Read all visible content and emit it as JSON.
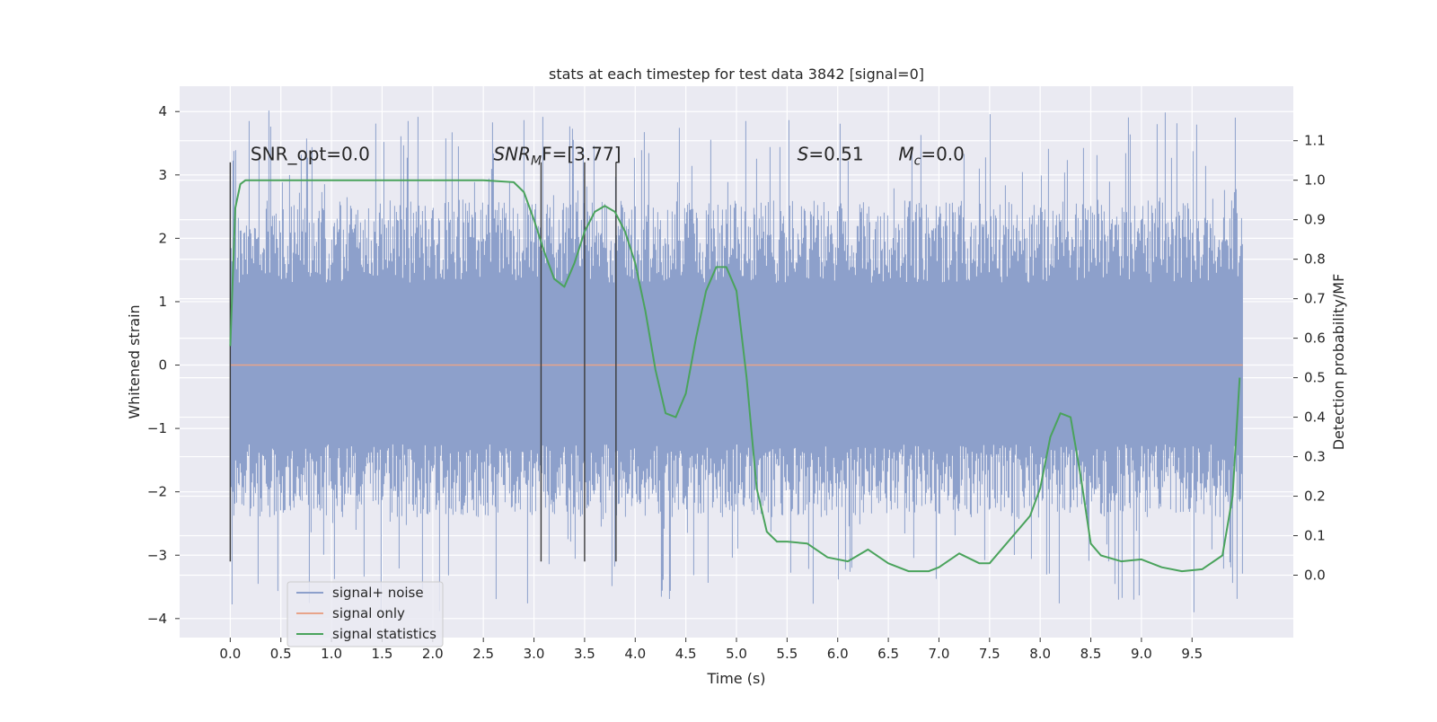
{
  "chart_data": {
    "type": "line",
    "title": "stats at each timestep for test data 3842 [signal=0]",
    "xlabel": "Time (s)",
    "ylabel": "Whitened strain",
    "y2label": "Detection probability/MF",
    "xlim": [
      -0.5,
      10.5
    ],
    "ylim": [
      -4.3,
      4.4
    ],
    "y2lim": [
      -0.158,
      1.238
    ],
    "x_ticks": [
      0.0,
      0.5,
      1.0,
      1.5,
      2.0,
      2.5,
      3.0,
      3.5,
      4.0,
      4.5,
      5.0,
      5.5,
      6.0,
      6.5,
      7.0,
      7.5,
      8.0,
      8.5,
      9.0,
      9.5
    ],
    "x_tick_labels": [
      "0.0",
      "0.5",
      "1.0",
      "1.5",
      "2.0",
      "2.5",
      "3.0",
      "3.5",
      "4.0",
      "4.5",
      "5.0",
      "5.5",
      "6.0",
      "6.5",
      "7.0",
      "7.5",
      "8.0",
      "8.5",
      "9.0",
      "9.5"
    ],
    "y_ticks": [
      -4,
      -3,
      -2,
      -1,
      0,
      1,
      2,
      3,
      4
    ],
    "y_tick_labels": [
      "−4",
      "−3",
      "−2",
      "−1",
      "0",
      "1",
      "2",
      "3",
      "4"
    ],
    "y2_ticks": [
      0.0,
      0.1,
      0.2,
      0.3,
      0.4,
      0.5,
      0.6,
      0.7,
      0.8,
      0.9,
      1.0,
      1.1
    ],
    "y2_tick_labels": [
      "0.0",
      "0.1",
      "0.2",
      "0.3",
      "0.4",
      "0.5",
      "0.6",
      "0.7",
      "0.8",
      "0.9",
      "1.0",
      "1.1"
    ],
    "grid": true,
    "legend_position": "lower-left",
    "noise_band": {
      "t_start": 0.0,
      "t_end": 10.0,
      "dense_low": -1.25,
      "dense_high": 1.3,
      "typical_low": -2.4,
      "typical_high": 2.6,
      "extreme_low": -3.9,
      "extreme_high": 4.05
    },
    "series": [
      {
        "name": "signal+ noise",
        "axis": "left",
        "color": "#8da0cb",
        "style": "noise"
      },
      {
        "name": "signal only",
        "axis": "left",
        "color": "#e8a48a",
        "x": [
          0.0,
          10.0
        ],
        "y": [
          0.0,
          0.0
        ]
      },
      {
        "name": "signal statistics",
        "axis": "right",
        "color": "#4aa35c",
        "x": [
          0.0,
          0.05,
          0.1,
          0.15,
          0.3,
          0.5,
          1.0,
          1.5,
          2.0,
          2.5,
          2.8,
          2.9,
          3.0,
          3.1,
          3.2,
          3.3,
          3.4,
          3.5,
          3.6,
          3.7,
          3.8,
          3.9,
          4.0,
          4.1,
          4.2,
          4.3,
          4.4,
          4.5,
          4.6,
          4.7,
          4.8,
          4.9,
          5.0,
          5.1,
          5.2,
          5.3,
          5.4,
          5.5,
          5.7,
          5.9,
          6.1,
          6.3,
          6.5,
          6.7,
          6.9,
          7.0,
          7.2,
          7.4,
          7.5,
          7.7,
          7.9,
          8.0,
          8.1,
          8.2,
          8.3,
          8.4,
          8.5,
          8.6,
          8.8,
          9.0,
          9.2,
          9.4,
          9.6,
          9.8,
          9.9,
          9.97
        ],
        "y": [
          0.58,
          0.93,
          0.99,
          1.0,
          1.0,
          1.0,
          1.0,
          1.0,
          1.0,
          1.0,
          0.995,
          0.97,
          0.9,
          0.82,
          0.75,
          0.73,
          0.79,
          0.87,
          0.92,
          0.935,
          0.92,
          0.87,
          0.79,
          0.67,
          0.52,
          0.41,
          0.4,
          0.46,
          0.6,
          0.72,
          0.78,
          0.78,
          0.72,
          0.5,
          0.22,
          0.11,
          0.085,
          0.085,
          0.08,
          0.045,
          0.035,
          0.065,
          0.03,
          0.01,
          0.01,
          0.02,
          0.055,
          0.03,
          0.03,
          0.09,
          0.15,
          0.22,
          0.35,
          0.41,
          0.4,
          0.25,
          0.08,
          0.05,
          0.035,
          0.04,
          0.02,
          0.01,
          0.015,
          0.05,
          0.2,
          0.5
        ]
      }
    ],
    "vertical_markers": [
      {
        "x": 0.0,
        "y_from": -3.1,
        "y_to": 3.2
      },
      {
        "x": 3.07,
        "y_from": -3.1,
        "y_to": 3.2
      },
      {
        "x": 3.5,
        "y_from": -3.1,
        "y_to": 3.2
      },
      {
        "x": 3.81,
        "y_from": -3.1,
        "y_to": 3.2
      }
    ],
    "annotations": {
      "snr_opt": {
        "x": 0.2,
        "y": 3.2,
        "text": "SNR_opt=0.0"
      },
      "snr_mf": {
        "x": 2.6,
        "y": 3.2,
        "italic": "SNR",
        "sub": "M",
        "mid": "F=[3.77]"
      },
      "s_stat": {
        "x": 5.6,
        "y": 3.2,
        "italic": "S",
        "rest": "=0.51"
      },
      "mc": {
        "x": 6.6,
        "y": 3.2,
        "italic": "M",
        "sub": "c",
        "rest": "=0.0"
      }
    }
  }
}
